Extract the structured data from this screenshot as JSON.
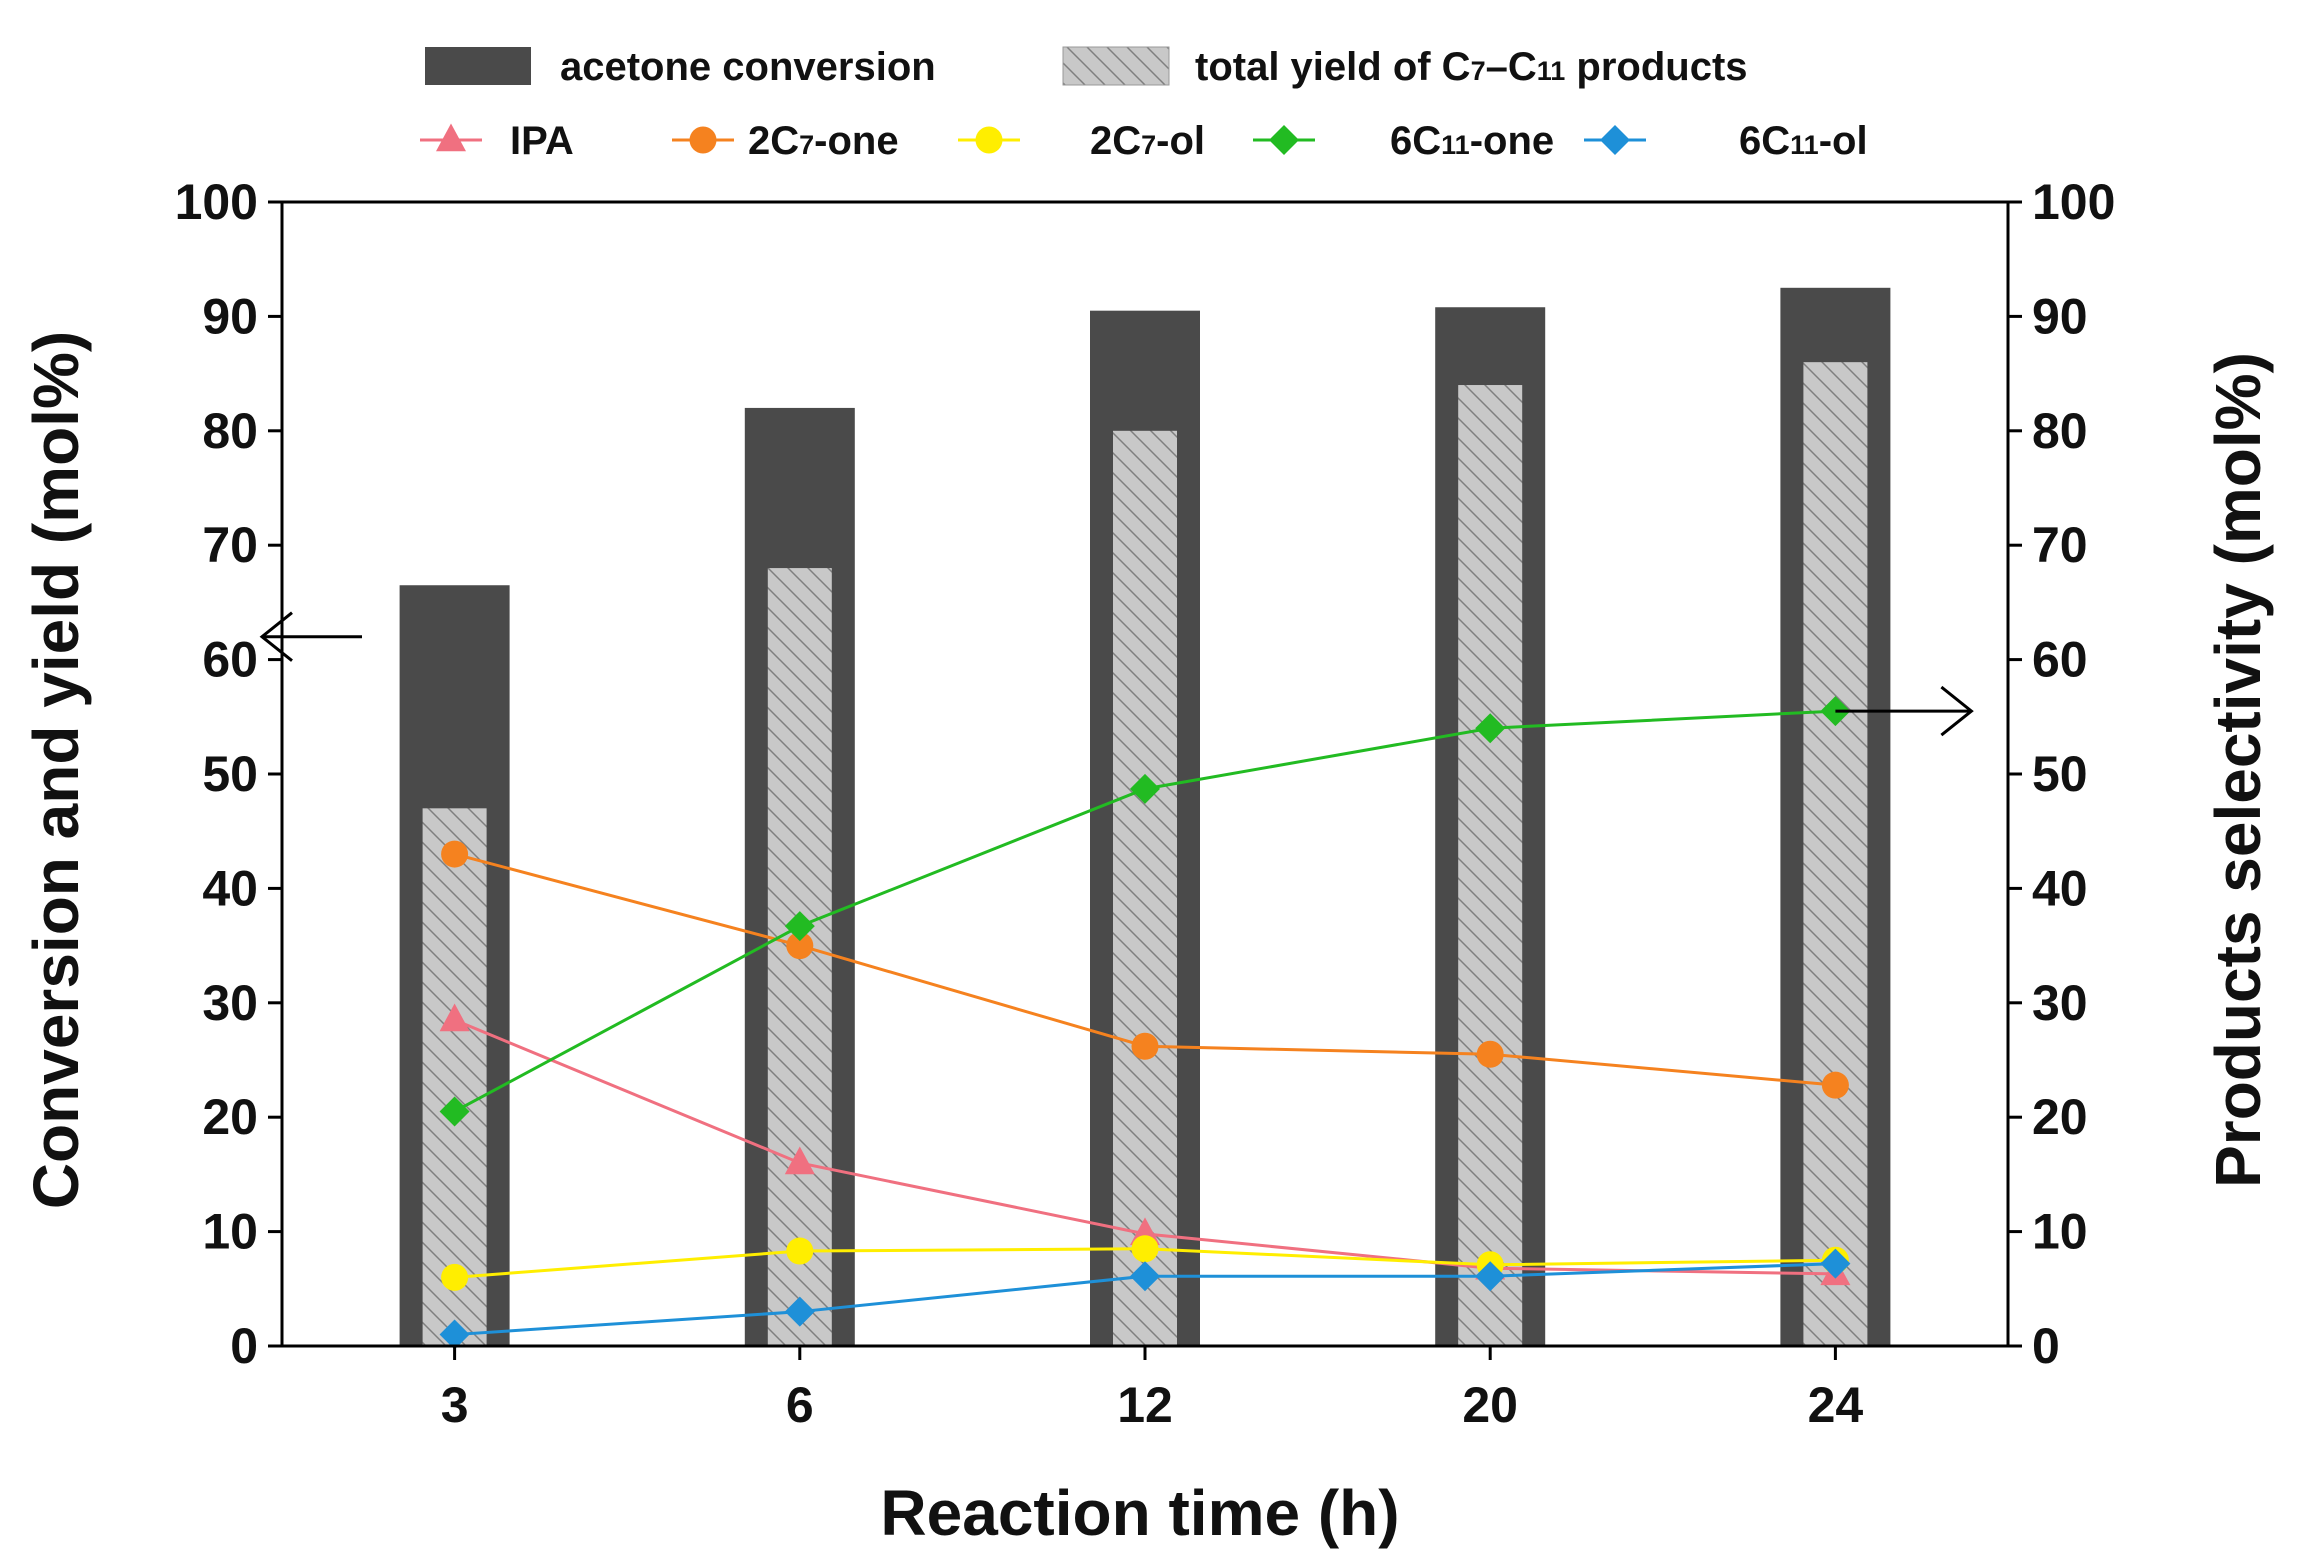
{
  "chart_data": {
    "type": "bar+line",
    "categories": [
      "3",
      "6",
      "12",
      "20",
      "24"
    ],
    "xlabel": "Reaction time (h)",
    "ylabel_left": "Conversion and yield (mol%)",
    "ylabel_right": "Products selectivity (mol%)",
    "ylim_left": [
      0,
      100
    ],
    "ylim_right": [
      0,
      100
    ],
    "yticks_left": [
      "0",
      "10",
      "20",
      "30",
      "40",
      "50",
      "60",
      "70",
      "80",
      "90",
      "100"
    ],
    "yticks_right": [
      "0",
      "10",
      "20",
      "30",
      "40",
      "50",
      "60",
      "70",
      "80",
      "90",
      "100"
    ],
    "legend_position": "top",
    "bar_series": [
      {
        "name": "acetone  conversion",
        "axis": "left",
        "color": "#4a4a4a",
        "values": [
          66.5,
          82,
          90.5,
          90.8,
          92.5
        ]
      },
      {
        "name": "total yield of C7–C11 products",
        "name_parts": [
          "total yield of C",
          "7",
          "–C",
          "11",
          " products"
        ],
        "axis": "left",
        "color": "#c8c8c8",
        "hatch": true,
        "values": [
          47,
          68,
          80,
          84,
          86
        ]
      }
    ],
    "line_series": [
      {
        "name": "IPA",
        "name_parts": [
          "IPA"
        ],
        "axis": "right",
        "color": "#f07080",
        "marker": "triangle",
        "values": [
          28.5,
          16,
          9.8,
          6.8,
          6.3
        ]
      },
      {
        "name": "2C7-one",
        "name_parts": [
          "2C",
          "7",
          "-one"
        ],
        "axis": "right",
        "color": "#f5821f",
        "marker": "circle",
        "values": [
          43,
          35,
          26.2,
          25.5,
          22.8
        ]
      },
      {
        "name": "2C7-ol",
        "name_parts": [
          "2C",
          "7",
          "-ol"
        ],
        "axis": "right",
        "color": "#ffee00",
        "marker": "circle",
        "values": [
          6,
          8.3,
          8.5,
          7.1,
          7.5
        ]
      },
      {
        "name": "6C11-one",
        "name_parts": [
          "6C",
          "11",
          "-one"
        ],
        "axis": "right",
        "color": "#22bb22",
        "marker": "diamond",
        "values": [
          20.5,
          36.7,
          48.7,
          54,
          55.5
        ]
      },
      {
        "name": "6C11-ol",
        "name_parts": [
          "6C",
          "11",
          "-ol"
        ],
        "axis": "right",
        "color": "#1e90d8",
        "marker": "diamond",
        "values": [
          1,
          3,
          6.1,
          6.1,
          7.2
        ]
      }
    ],
    "annotations": [
      {
        "type": "arrow",
        "direction": "left",
        "meaning": "bars read on left axis",
        "y_value": 62
      },
      {
        "type": "arrow",
        "direction": "right",
        "meaning": "lines read on right axis",
        "y_value": 55.5
      }
    ]
  }
}
